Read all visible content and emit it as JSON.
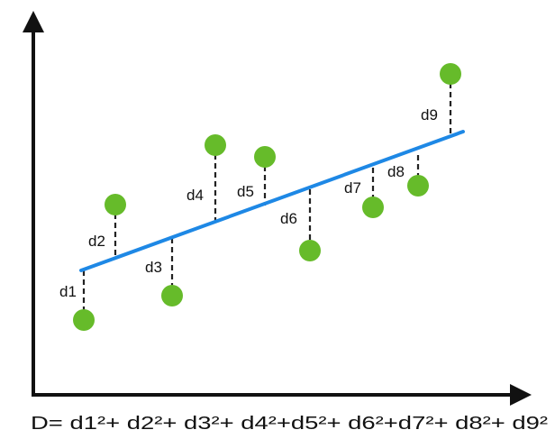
{
  "colors": {
    "axis": "#111111",
    "regression_line": "#1e88e5",
    "points": "#66bb2a",
    "residual": "#222222",
    "text": "#111111"
  },
  "diagram": {
    "residual_labels": [
      "d1",
      "d2",
      "d3",
      "d4",
      "d5",
      "d6",
      "d7",
      "d8",
      "d9"
    ],
    "formula": "D= d1²+ d2²+ d3²+ d4²+d5²+ d6²+d7²+ d8²+ d9²"
  }
}
